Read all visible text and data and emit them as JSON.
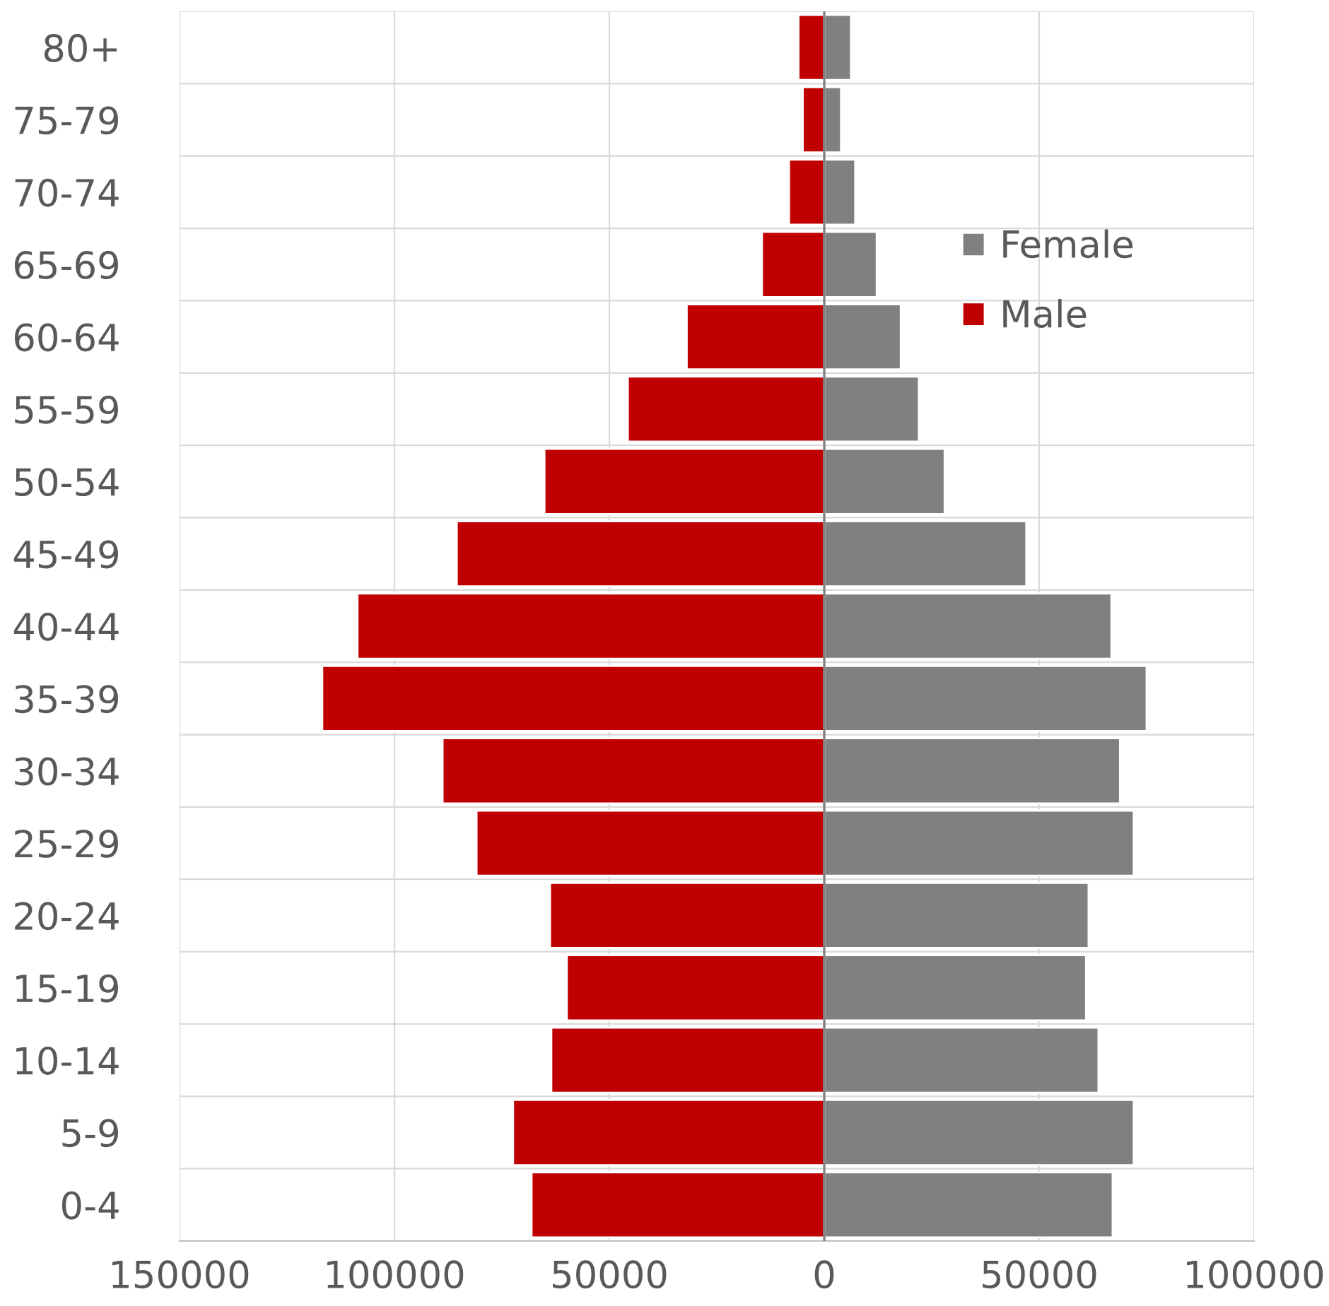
{
  "chart_data": {
    "type": "bar",
    "orientation": "horizontal",
    "categories": [
      "80+",
      "75-79",
      "70-74",
      "65-69",
      "60-64",
      "55-59",
      "50-54",
      "45-49",
      "40-44",
      "35-39",
      "30-34",
      "25-29",
      "20-24",
      "15-19",
      "10-14",
      "5-9",
      "0-4"
    ],
    "series": [
      {
        "name": "Female",
        "color": "#808080",
        "values": [
          6200,
          3900,
          7200,
          12200,
          17800,
          22000,
          28000,
          47000,
          66800,
          75000,
          68800,
          72000,
          61500,
          60900,
          63800,
          72000,
          67100
        ]
      },
      {
        "name": "Male",
        "color": "#c00000",
        "values": [
          -6000,
          -5000,
          -8200,
          -14500,
          -32000,
          -45700,
          -65100,
          -85500,
          -108600,
          -116800,
          -88800,
          -80900,
          -63800,
          -59900,
          -63500,
          -72400,
          -68100
        ]
      }
    ],
    "xlim": [
      -150000,
      100000
    ],
    "xticks": [
      {
        "value": -150000,
        "label": "150000"
      },
      {
        "value": -100000,
        "label": "100000"
      },
      {
        "value": -50000,
        "label": "50000"
      },
      0,
      50000,
      100000
    ],
    "grid": true,
    "legend": "top right",
    "stacked": true
  }
}
